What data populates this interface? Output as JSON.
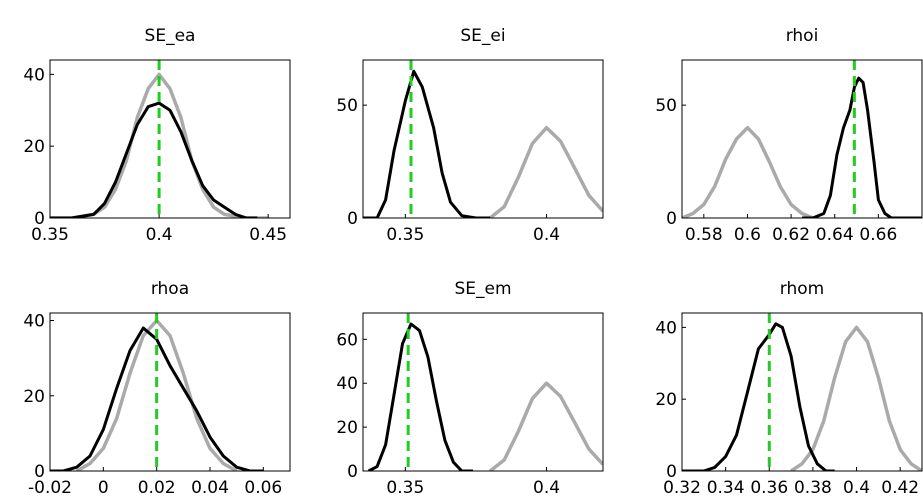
{
  "chart_data": [
    {
      "type": "line",
      "title": "SE_ea",
      "xlim": [
        0.35,
        0.46
      ],
      "ylim": [
        0,
        44
      ],
      "xticks": [
        0.35,
        0.4,
        0.45
      ],
      "xtick_labels": [
        "0.35",
        "0.4",
        "0.45"
      ],
      "yticks": [
        0,
        20,
        40
      ],
      "ytick_labels": [
        "0",
        "20",
        "40"
      ],
      "series": [
        {
          "color": "#aaaaaa",
          "x": [
            0.35,
            0.36,
            0.37,
            0.375,
            0.38,
            0.385,
            0.39,
            0.395,
            0.4,
            0.405,
            0.41,
            0.415,
            0.42,
            0.425,
            0.43,
            0.44,
            0.45
          ],
          "y": [
            0,
            0,
            1,
            3,
            8,
            16,
            28,
            36,
            40,
            36,
            28,
            16,
            8,
            3,
            1,
            0,
            0
          ]
        },
        {
          "color": "#000000",
          "x": [
            0.35,
            0.36,
            0.37,
            0.375,
            0.38,
            0.385,
            0.39,
            0.395,
            0.4,
            0.405,
            0.41,
            0.415,
            0.42,
            0.425,
            0.43,
            0.435,
            0.44,
            0.445
          ],
          "y": [
            0,
            0,
            1,
            4,
            10,
            18,
            26,
            31,
            32,
            30,
            24,
            16,
            9,
            5,
            3,
            1,
            0,
            0
          ]
        }
      ],
      "vline": {
        "x": 0.4,
        "color": "#22cc22"
      }
    },
    {
      "type": "line",
      "title": "SE_ei",
      "xlim": [
        0.335,
        0.42
      ],
      "ylim": [
        0,
        70
      ],
      "xticks": [
        0.35,
        0.4
      ],
      "xtick_labels": [
        "0.35",
        "0.4"
      ],
      "yticks": [
        0,
        50
      ],
      "ytick_labels": [
        "0",
        "50"
      ],
      "series": [
        {
          "color": "#aaaaaa",
          "x": [
            0.38,
            0.385,
            0.39,
            0.395,
            0.4,
            0.405,
            0.41,
            0.415,
            0.42
          ],
          "y": [
            0,
            5,
            18,
            33,
            40,
            34,
            22,
            10,
            3
          ]
        },
        {
          "color": "#000000",
          "x": [
            0.335,
            0.34,
            0.343,
            0.346,
            0.35,
            0.353,
            0.356,
            0.36,
            0.363,
            0.366,
            0.37,
            0.375,
            0.38
          ],
          "y": [
            0,
            0,
            8,
            30,
            52,
            65,
            58,
            40,
            20,
            7,
            1,
            0,
            0
          ]
        }
      ],
      "vline": {
        "x": 0.352,
        "color": "#22cc22"
      }
    },
    {
      "type": "line",
      "title": "rhoi",
      "xlim": [
        0.57,
        0.68
      ],
      "ylim": [
        0,
        70
      ],
      "xticks": [
        0.58,
        0.6,
        0.62,
        0.64,
        0.66
      ],
      "xtick_labels": [
        "0.58",
        "0.6",
        "0.62",
        "0.64",
        "0.66"
      ],
      "yticks": [
        0,
        50
      ],
      "ytick_labels": [
        "0",
        "50"
      ],
      "series": [
        {
          "color": "#aaaaaa",
          "x": [
            0.57,
            0.575,
            0.58,
            0.585,
            0.59,
            0.595,
            0.6,
            0.605,
            0.61,
            0.615,
            0.62,
            0.625,
            0.63
          ],
          "y": [
            0,
            2,
            6,
            14,
            26,
            35,
            40,
            35,
            25,
            14,
            6,
            2,
            0
          ]
        },
        {
          "color": "#000000",
          "x": [
            0.625,
            0.63,
            0.635,
            0.638,
            0.641,
            0.644,
            0.647,
            0.649,
            0.651,
            0.653,
            0.655,
            0.658,
            0.66,
            0.663,
            0.666,
            0.67,
            0.68
          ],
          "y": [
            0,
            0,
            2,
            10,
            28,
            40,
            48,
            58,
            62,
            60,
            48,
            25,
            8,
            2,
            0,
            0,
            0
          ]
        }
      ],
      "vline": {
        "x": 0.649,
        "color": "#22cc22"
      }
    },
    {
      "type": "line",
      "title": "rhoa",
      "xlim": [
        -0.02,
        0.07
      ],
      "ylim": [
        0,
        42
      ],
      "xticks": [
        -0.02,
        0,
        0.02,
        0.04,
        0.06
      ],
      "xtick_labels": [
        "-0.02",
        "0",
        "0.02",
        "0.04",
        "0.06"
      ],
      "yticks": [
        0,
        20,
        40
      ],
      "ytick_labels": [
        "0",
        "20",
        "40"
      ],
      "series": [
        {
          "color": "#aaaaaa",
          "x": [
            -0.01,
            -0.005,
            0,
            0.005,
            0.01,
            0.015,
            0.02,
            0.025,
            0.03,
            0.035,
            0.04,
            0.045,
            0.05
          ],
          "y": [
            0,
            2,
            6,
            14,
            26,
            36,
            40,
            36,
            26,
            14,
            6,
            2,
            0
          ]
        },
        {
          "color": "#000000",
          "x": [
            -0.02,
            -0.015,
            -0.01,
            -0.005,
            0,
            0.005,
            0.01,
            0.015,
            0.02,
            0.025,
            0.03,
            0.035,
            0.04,
            0.045,
            0.05,
            0.055,
            0.06
          ],
          "y": [
            0,
            0,
            1,
            4,
            11,
            22,
            32,
            38,
            35,
            28,
            22,
            16,
            9,
            4,
            1,
            0,
            0
          ]
        }
      ],
      "vline": {
        "x": 0.02,
        "color": "#22cc22"
      }
    },
    {
      "type": "line",
      "title": "SE_em",
      "xlim": [
        0.335,
        0.42
      ],
      "ylim": [
        0,
        72
      ],
      "xticks": [
        0.35,
        0.4
      ],
      "xtick_labels": [
        "0.35",
        "0.4"
      ],
      "yticks": [
        0,
        20,
        40,
        60
      ],
      "ytick_labels": [
        "0",
        "20",
        "40",
        "60"
      ],
      "series": [
        {
          "color": "#aaaaaa",
          "x": [
            0.38,
            0.385,
            0.39,
            0.395,
            0.4,
            0.405,
            0.41,
            0.415,
            0.42
          ],
          "y": [
            0,
            5,
            18,
            33,
            40,
            34,
            22,
            10,
            3
          ]
        },
        {
          "color": "#000000",
          "x": [
            0.337,
            0.34,
            0.343,
            0.346,
            0.349,
            0.352,
            0.355,
            0.358,
            0.361,
            0.364,
            0.367,
            0.37,
            0.374
          ],
          "y": [
            0,
            2,
            12,
            35,
            58,
            67,
            64,
            52,
            32,
            14,
            4,
            0,
            0
          ]
        }
      ],
      "vline": {
        "x": 0.351,
        "color": "#22cc22"
      }
    },
    {
      "type": "line",
      "title": "rhom",
      "xlim": [
        0.32,
        0.43
      ],
      "ylim": [
        0,
        44
      ],
      "xticks": [
        0.32,
        0.34,
        0.36,
        0.38,
        0.4,
        0.42
      ],
      "xtick_labels": [
        "0.32",
        "0.34",
        "0.36",
        "0.38",
        "0.4",
        "0.42"
      ],
      "yticks": [
        0,
        20,
        40
      ],
      "ytick_labels": [
        "0",
        "20",
        "40"
      ],
      "series": [
        {
          "color": "#aaaaaa",
          "x": [
            0.37,
            0.375,
            0.38,
            0.385,
            0.39,
            0.395,
            0.4,
            0.405,
            0.41,
            0.415,
            0.42,
            0.425,
            0.43
          ],
          "y": [
            0,
            2,
            6,
            14,
            26,
            36,
            40,
            36,
            26,
            14,
            6,
            2,
            0
          ]
        },
        {
          "color": "#000000",
          "x": [
            0.32,
            0.33,
            0.335,
            0.34,
            0.345,
            0.35,
            0.355,
            0.36,
            0.363,
            0.366,
            0.37,
            0.374,
            0.378,
            0.382,
            0.386,
            0.39
          ],
          "y": [
            0,
            0,
            1,
            4,
            10,
            22,
            34,
            38,
            41,
            40,
            32,
            18,
            7,
            2,
            0,
            0
          ]
        }
      ],
      "vline": {
        "x": 0.36,
        "color": "#22cc22"
      }
    }
  ]
}
